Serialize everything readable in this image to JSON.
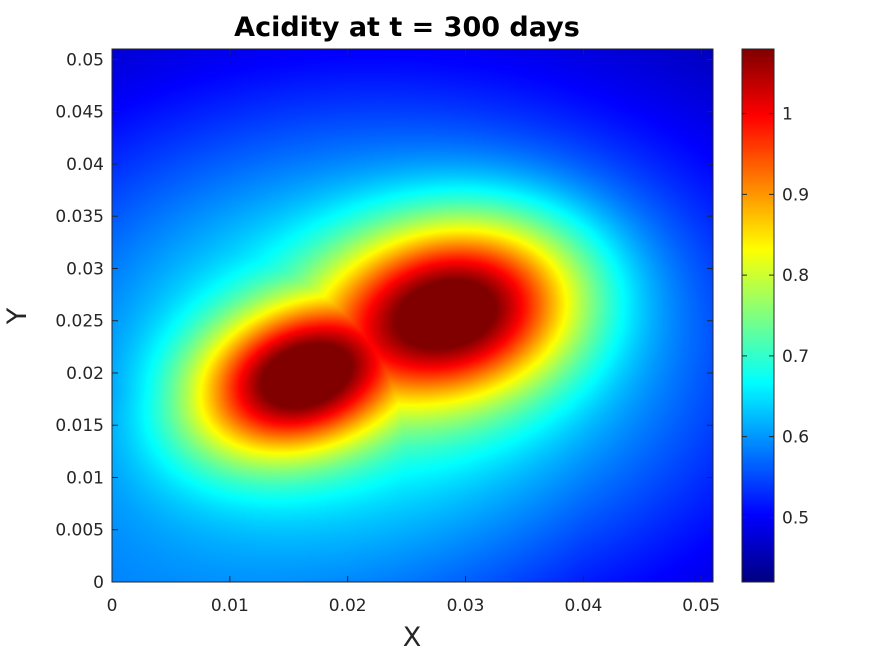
{
  "chart_data": {
    "type": "heatmap",
    "title": "Acidity at t = 300 days",
    "xlabel": "X",
    "ylabel": "Y",
    "xlim": [
      0,
      0.051
    ],
    "ylim": [
      0,
      0.051
    ],
    "xticks": [
      "0",
      "0.01",
      "0.02",
      "0.03",
      "0.04",
      "0.05"
    ],
    "xtick_values": [
      0,
      0.01,
      0.02,
      0.03,
      0.04,
      0.05
    ],
    "yticks": [
      "0",
      "0.005",
      "0.01",
      "0.015",
      "0.02",
      "0.025",
      "0.03",
      "0.035",
      "0.04",
      "0.045",
      "0.05"
    ],
    "ytick_values": [
      0,
      0.005,
      0.01,
      0.015,
      0.02,
      0.025,
      0.03,
      0.035,
      0.04,
      0.045,
      0.05
    ],
    "colormap": "jet",
    "colorbar": {
      "range": [
        0.42,
        1.08
      ],
      "ticks": [
        "0.5",
        "0.6",
        "0.7",
        "0.8",
        "0.9",
        "1"
      ],
      "tick_values": [
        0.5,
        0.6,
        0.7,
        0.8,
        0.9,
        1.0
      ]
    },
    "field_description": {
      "peaks": [
        {
          "x": 0.016,
          "y": 0.0195,
          "value": 1.08
        },
        {
          "x": 0.029,
          "y": 0.026,
          "value": 1.07
        }
      ],
      "corner_values": {
        "top_left": 0.43,
        "top_right": 0.43,
        "bottom_left": 0.67,
        "bottom_right": 0.48
      }
    }
  }
}
